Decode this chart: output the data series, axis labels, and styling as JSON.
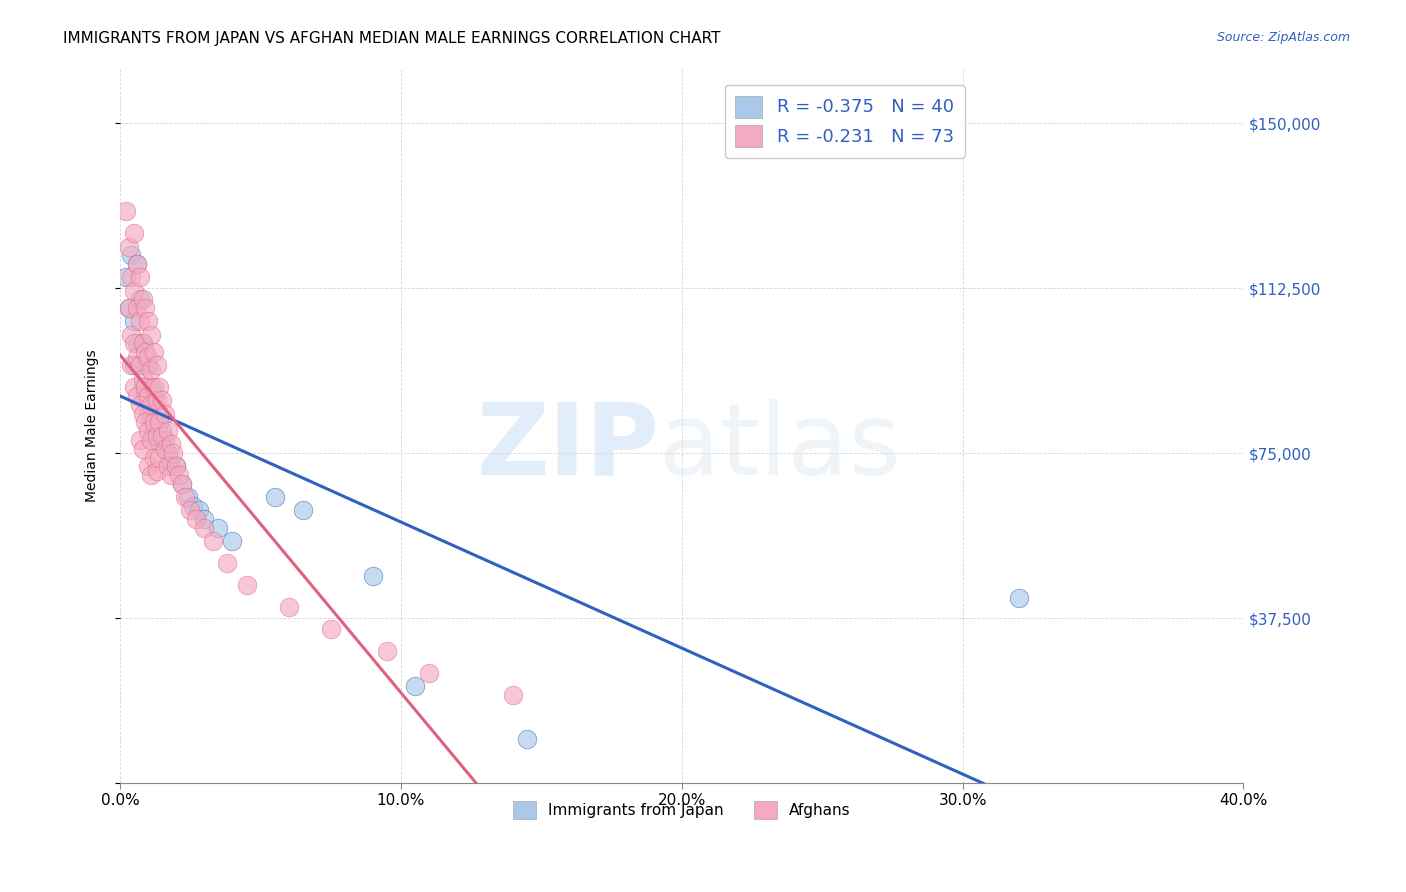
{
  "title": "IMMIGRANTS FROM JAPAN VS AFGHAN MEDIAN MALE EARNINGS CORRELATION CHART",
  "source": "Source: ZipAtlas.com",
  "ylabel": "Median Male Earnings",
  "x_min": 0.0,
  "x_max": 0.4,
  "y_min": 0,
  "y_max": 162500,
  "x_ticks": [
    0.0,
    0.1,
    0.2,
    0.3,
    0.4
  ],
  "x_tick_labels": [
    "0.0%",
    "10.0%",
    "20.0%",
    "30.0%",
    "40.0%"
  ],
  "y_ticks": [
    0,
    37500,
    75000,
    112500,
    150000
  ],
  "y_tick_labels": [
    "",
    "$37,500",
    "$75,000",
    "$112,500",
    "$150,000"
  ],
  "legend_japan_r": "-0.375",
  "legend_japan_n": "40",
  "legend_afghan_r": "-0.231",
  "legend_afghan_n": "73",
  "japan_color": "#aac8e8",
  "afghan_color": "#f4aac0",
  "japan_line_color": "#3060c0",
  "afghan_line_color": "#e06080",
  "japan_points_x": [
    0.002,
    0.003,
    0.004,
    0.005,
    0.005,
    0.006,
    0.006,
    0.007,
    0.007,
    0.008,
    0.008,
    0.009,
    0.009,
    0.01,
    0.01,
    0.011,
    0.011,
    0.012,
    0.012,
    0.013,
    0.013,
    0.014,
    0.015,
    0.016,
    0.017,
    0.018,
    0.02,
    0.022,
    0.024,
    0.026,
    0.028,
    0.03,
    0.035,
    0.04,
    0.055,
    0.065,
    0.09,
    0.105,
    0.145,
    0.32
  ],
  "japan_points_y": [
    115000,
    108000,
    120000,
    105000,
    95000,
    118000,
    100000,
    110000,
    95000,
    100000,
    90000,
    95000,
    88000,
    95000,
    85000,
    90000,
    83000,
    88000,
    80000,
    85000,
    78000,
    82000,
    80000,
    78000,
    75000,
    72000,
    72000,
    68000,
    65000,
    63000,
    62000,
    60000,
    58000,
    55000,
    65000,
    62000,
    47000,
    22000,
    10000,
    42000
  ],
  "afghan_points_x": [
    0.002,
    0.003,
    0.003,
    0.004,
    0.004,
    0.004,
    0.005,
    0.005,
    0.005,
    0.005,
    0.006,
    0.006,
    0.006,
    0.006,
    0.007,
    0.007,
    0.007,
    0.007,
    0.007,
    0.008,
    0.008,
    0.008,
    0.008,
    0.008,
    0.009,
    0.009,
    0.009,
    0.009,
    0.01,
    0.01,
    0.01,
    0.01,
    0.01,
    0.011,
    0.011,
    0.011,
    0.011,
    0.011,
    0.012,
    0.012,
    0.012,
    0.012,
    0.013,
    0.013,
    0.013,
    0.013,
    0.014,
    0.014,
    0.014,
    0.015,
    0.015,
    0.016,
    0.016,
    0.017,
    0.017,
    0.018,
    0.018,
    0.019,
    0.02,
    0.021,
    0.022,
    0.023,
    0.025,
    0.027,
    0.03,
    0.033,
    0.038,
    0.045,
    0.06,
    0.075,
    0.095,
    0.11,
    0.14
  ],
  "afghan_points_y": [
    130000,
    122000,
    108000,
    115000,
    102000,
    95000,
    125000,
    112000,
    100000,
    90000,
    118000,
    108000,
    97000,
    88000,
    115000,
    105000,
    95000,
    86000,
    78000,
    110000,
    100000,
    92000,
    84000,
    76000,
    108000,
    98000,
    90000,
    82000,
    105000,
    97000,
    88000,
    80000,
    72000,
    102000,
    94000,
    86000,
    78000,
    70000,
    98000,
    90000,
    82000,
    74000,
    95000,
    87000,
    79000,
    71000,
    90000,
    82000,
    74000,
    87000,
    79000,
    84000,
    76000,
    80000,
    72000,
    77000,
    70000,
    75000,
    72000,
    70000,
    68000,
    65000,
    62000,
    60000,
    58000,
    55000,
    50000,
    45000,
    40000,
    35000,
    30000,
    25000,
    20000
  ],
  "afghan_line_solid_end": 0.135,
  "japan_line_start": 0.0,
  "japan_line_end": 0.4,
  "afghan_line_start": 0.0,
  "afghan_line_dashed_end": 0.4
}
